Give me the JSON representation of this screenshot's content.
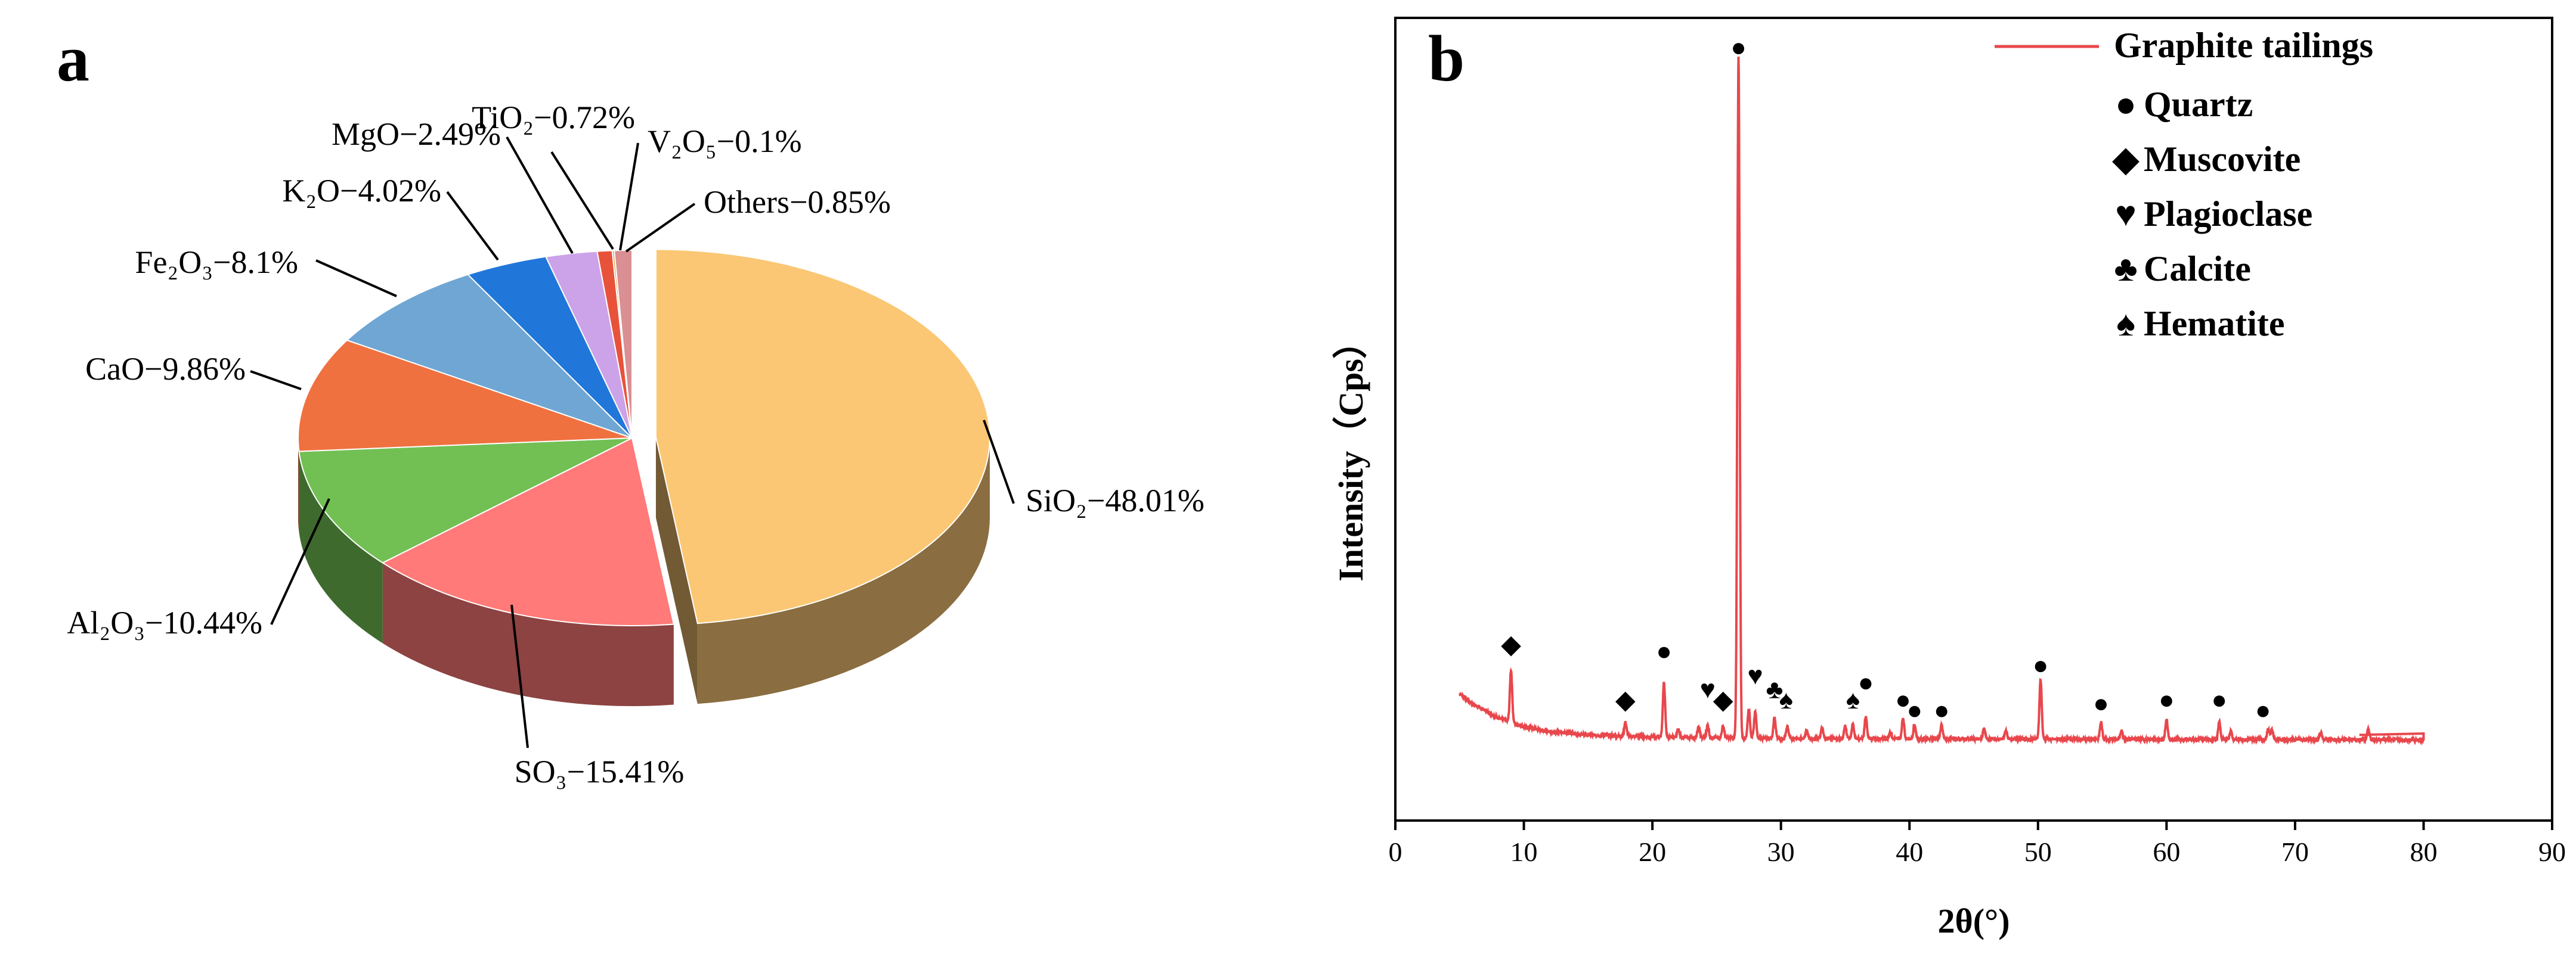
{
  "chart_data": [
    {
      "type": "pie",
      "panel": "a",
      "style": "3d-exploded",
      "slices": [
        {
          "label": "SiO2",
          "display": "SiO₂−48.01%",
          "value": 48.01,
          "color": "#FBC774"
        },
        {
          "label": "SO3",
          "display": "SO₃−15.41%",
          "value": 15.41,
          "color": "#FF7A78"
        },
        {
          "label": "Al2O3",
          "display": "Al₂O₃−10.44%",
          "value": 10.44,
          "color": "#72C054"
        },
        {
          "label": "CaO",
          "display": "CaO−9.86%",
          "value": 9.86,
          "color": "#EF7140"
        },
        {
          "label": "Fe2O3",
          "display": "Fe₂O₃−8.1%",
          "value": 8.1,
          "color": "#6FA6D3"
        },
        {
          "label": "K2O",
          "display": "K₂O−4.02%",
          "value": 4.02,
          "color": "#2177D9"
        },
        {
          "label": "MgO",
          "display": "MgO−2.49%",
          "value": 2.49,
          "color": "#CCA2E8"
        },
        {
          "label": "TiO2",
          "display": "TiO₂−0.72%",
          "value": 0.72,
          "color": "#E8523A"
        },
        {
          "label": "V2O5",
          "display": "V₂O₅−0.1%",
          "value": 0.1,
          "color": "#D9A63A"
        },
        {
          "label": "Others",
          "display": "Others−0.85%",
          "value": 0.85,
          "color": "#D98F93"
        }
      ]
    },
    {
      "type": "line",
      "panel": "b",
      "xlabel": "2θ(°)",
      "ylabel": "Intensity（Cps）",
      "xlim": [
        0,
        90
      ],
      "xticks": [
        "0",
        "10",
        "20",
        "30",
        "40",
        "50",
        "60",
        "70",
        "80",
        "90"
      ],
      "yticks": [],
      "series": [
        {
          "name": "Graphite tailings",
          "color": "#E8474C"
        }
      ],
      "legend_markers": [
        {
          "symbol": "●",
          "name": "Quartz"
        },
        {
          "symbol": "◆",
          "name": "Muscovite"
        },
        {
          "symbol": "♥",
          "name": "Plagioclase"
        },
        {
          "symbol": "♣",
          "name": "Calcite"
        },
        {
          "symbol": "♠",
          "name": "Hematite"
        }
      ],
      "baseline": [
        [
          5,
          0.07
        ],
        [
          6,
          0.055
        ],
        [
          8,
          0.035
        ],
        [
          10,
          0.022
        ],
        [
          12,
          0.015
        ],
        [
          15,
          0.01
        ],
        [
          20,
          0.007
        ],
        [
          30,
          0.005
        ],
        [
          50,
          0.004
        ],
        [
          80,
          0.003
        ]
      ],
      "peaks": [
        {
          "x": 9.0,
          "y": 0.075
        },
        {
          "x": 17.9,
          "y": 0.02
        },
        {
          "x": 20.9,
          "y": 0.078
        },
        {
          "x": 22.0,
          "y": 0.012
        },
        {
          "x": 23.6,
          "y": 0.015
        },
        {
          "x": 24.3,
          "y": 0.018
        },
        {
          "x": 25.5,
          "y": 0.017
        },
        {
          "x": 26.7,
          "y": 0.98
        },
        {
          "x": 27.5,
          "y": 0.042
        },
        {
          "x": 28.0,
          "y": 0.038
        },
        {
          "x": 29.5,
          "y": 0.03
        },
        {
          "x": 30.5,
          "y": 0.018
        },
        {
          "x": 32.0,
          "y": 0.012
        },
        {
          "x": 33.2,
          "y": 0.015
        },
        {
          "x": 35.0,
          "y": 0.018
        },
        {
          "x": 35.6,
          "y": 0.02
        },
        {
          "x": 36.6,
          "y": 0.032
        },
        {
          "x": 38.5,
          "y": 0.01
        },
        {
          "x": 39.5,
          "y": 0.03
        },
        {
          "x": 40.4,
          "y": 0.02
        },
        {
          "x": 42.5,
          "y": 0.02
        },
        {
          "x": 45.8,
          "y": 0.015
        },
        {
          "x": 47.5,
          "y": 0.012
        },
        {
          "x": 50.2,
          "y": 0.086
        },
        {
          "x": 54.9,
          "y": 0.025
        },
        {
          "x": 56.5,
          "y": 0.012
        },
        {
          "x": 60.0,
          "y": 0.028
        },
        {
          "x": 64.1,
          "y": 0.025
        },
        {
          "x": 65.0,
          "y": 0.012
        },
        {
          "x": 67.9,
          "y": 0.015
        },
        {
          "x": 68.2,
          "y": 0.014
        },
        {
          "x": 72.0,
          "y": 0.01
        },
        {
          "x": 75.7,
          "y": 0.015
        }
      ],
      "annotations": [
        {
          "phase": "Quartz",
          "symbol": "●",
          "x": 26.7,
          "y": 1.0
        },
        {
          "phase": "Muscovite",
          "symbol": "◆",
          "x": 9.0,
          "y": 0.14
        },
        {
          "phase": "Quartz",
          "symbol": "●",
          "x": 20.9,
          "y": 0.13
        },
        {
          "phase": "Muscovite",
          "symbol": "◆",
          "x": 17.9,
          "y": 0.06
        },
        {
          "phase": "Plagioclase",
          "symbol": "♥",
          "x": 24.3,
          "y": 0.075
        },
        {
          "phase": "Muscovite",
          "symbol": "◆",
          "x": 25.5,
          "y": 0.06
        },
        {
          "phase": "Plagioclase",
          "symbol": "♥",
          "x": 28.0,
          "y": 0.095
        },
        {
          "phase": "Calcite",
          "symbol": "♣",
          "x": 29.5,
          "y": 0.075
        },
        {
          "phase": "Hematite",
          "symbol": "♠",
          "x": 30.4,
          "y": 0.06
        },
        {
          "phase": "Hematite",
          "symbol": "♠",
          "x": 35.6,
          "y": 0.06
        },
        {
          "phase": "Quartz",
          "symbol": "●",
          "x": 36.6,
          "y": 0.085
        },
        {
          "phase": "Quartz",
          "symbol": "●",
          "x": 39.5,
          "y": 0.06
        },
        {
          "phase": "Quartz",
          "symbol": "●",
          "x": 40.4,
          "y": 0.045
        },
        {
          "phase": "Quartz",
          "symbol": "●",
          "x": 42.5,
          "y": 0.045
        },
        {
          "phase": "Quartz",
          "symbol": "●",
          "x": 50.2,
          "y": 0.11
        },
        {
          "phase": "Quartz",
          "symbol": "●",
          "x": 54.9,
          "y": 0.055
        },
        {
          "phase": "Quartz",
          "symbol": "●",
          "x": 60.0,
          "y": 0.06
        },
        {
          "phase": "Quartz",
          "symbol": "●",
          "x": 64.1,
          "y": 0.06
        },
        {
          "phase": "Quartz",
          "symbol": "●",
          "x": 67.5,
          "y": 0.045
        }
      ]
    }
  ]
}
